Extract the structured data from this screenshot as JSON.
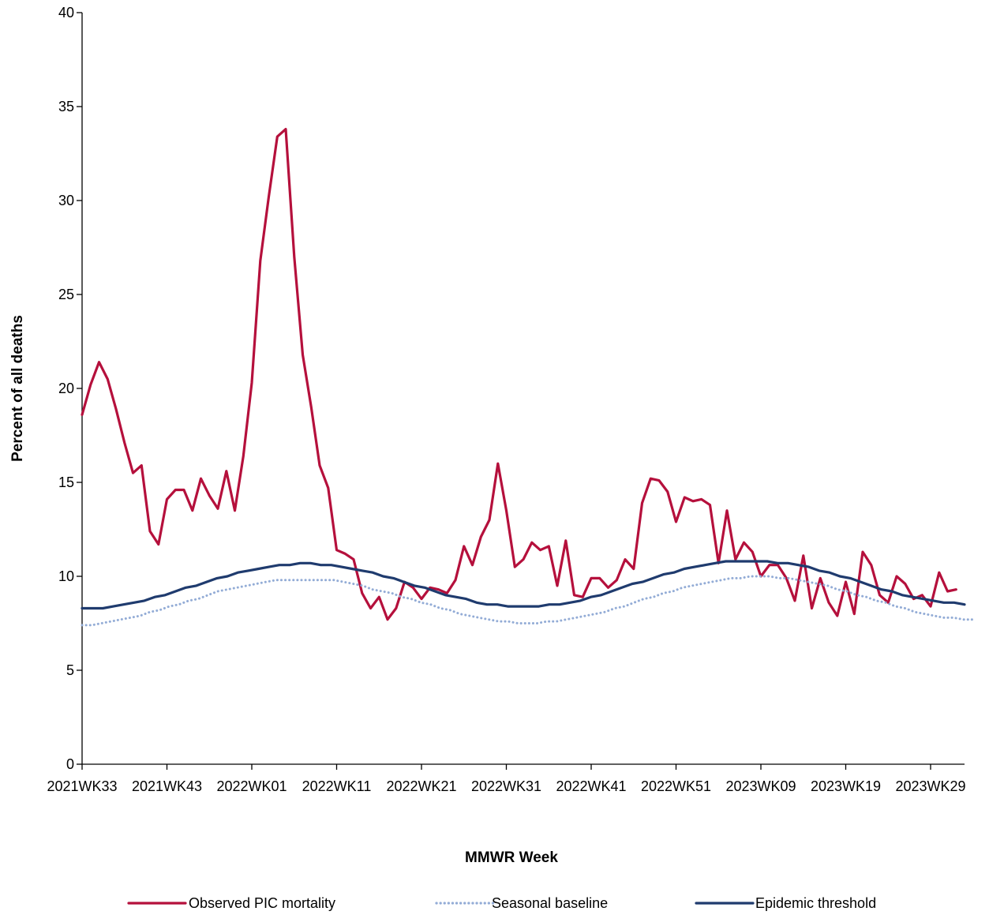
{
  "chart_data": {
    "type": "line",
    "title": "",
    "xlabel": "MMWR Week",
    "ylabel": "Percent of all deaths",
    "ylim": [
      0,
      40
    ],
    "yticks": [
      0,
      5,
      10,
      15,
      20,
      25,
      30,
      35,
      40
    ],
    "grid": false,
    "legend_position": "bottom",
    "x_tick_labels": [
      "2021WK33",
      "2021WK43",
      "2022WK01",
      "2022WK11",
      "2022WK21",
      "2022WK31",
      "2022WK41",
      "2022WK51",
      "2023WK09",
      "2023WK19",
      "2023WK29"
    ],
    "x_tick_positions": [
      0,
      10,
      20,
      30,
      40,
      50,
      60,
      70,
      80,
      90,
      100
    ],
    "x_range": [
      0,
      104
    ],
    "series": [
      {
        "name": "Observed PIC mortality",
        "color": "#b5103c",
        "style": "solid",
        "values": [
          18.6,
          20.2,
          21.4,
          20.5,
          18.9,
          17.1,
          15.5,
          15.9,
          12.4,
          11.7,
          14.1,
          14.6,
          14.6,
          13.5,
          15.2,
          14.3,
          13.6,
          15.6,
          13.5,
          16.4,
          20.3,
          26.8,
          30.2,
          33.4,
          33.8,
          27.0,
          21.8,
          19.0,
          15.9,
          14.7,
          11.4,
          11.2,
          10.9,
          9.1,
          8.3,
          8.9,
          7.7,
          8.3,
          9.7,
          9.4,
          8.8,
          9.4,
          9.3,
          9.1,
          9.8,
          11.6,
          10.6,
          12.1,
          13.0,
          16.0,
          13.5,
          10.5,
          10.9,
          11.8,
          11.4,
          11.6,
          9.5,
          11.9,
          9.0,
          8.9,
          9.9,
          9.9,
          9.4,
          9.8,
          10.9,
          10.4,
          13.9,
          15.2,
          15.1,
          14.5,
          12.9,
          14.2,
          14.0,
          14.1,
          13.8,
          10.7,
          13.5,
          10.9,
          11.8,
          11.3,
          10.0,
          10.6,
          10.6,
          9.9,
          8.7,
          11.1,
          8.3,
          9.9,
          8.6,
          7.9,
          9.7,
          8.0,
          11.3,
          10.6,
          9.0,
          8.6,
          10.0,
          9.6,
          8.8,
          9.0,
          8.4,
          10.2,
          9.2,
          9.3
        ],
        "x_start": 0
      },
      {
        "name": "Seasonal baseline",
        "color": "#93acd6",
        "style": "dotted",
        "values": [
          7.4,
          7.4,
          7.5,
          7.6,
          7.7,
          7.8,
          7.9,
          8.1,
          8.2,
          8.4,
          8.5,
          8.7,
          8.8,
          9.0,
          9.2,
          9.3,
          9.4,
          9.5,
          9.6,
          9.7,
          9.8,
          9.8,
          9.8,
          9.8,
          9.8,
          9.8,
          9.8,
          9.7,
          9.6,
          9.5,
          9.3,
          9.2,
          9.1,
          8.9,
          8.8,
          8.6,
          8.5,
          8.3,
          8.2,
          8.0,
          7.9,
          7.8,
          7.7,
          7.6,
          7.6,
          7.5,
          7.5,
          7.5,
          7.6,
          7.6,
          7.7,
          7.8,
          7.9,
          8.0,
          8.1,
          8.3,
          8.4,
          8.6,
          8.8,
          8.9,
          9.1,
          9.2,
          9.4,
          9.5,
          9.6,
          9.7,
          9.8,
          9.9,
          9.9,
          10.0,
          10.0,
          10.0,
          9.9,
          9.9,
          9.8,
          9.7,
          9.6,
          9.5,
          9.3,
          9.2,
          9.0,
          8.9,
          8.7,
          8.6,
          8.4,
          8.3,
          8.1,
          8.0,
          7.9,
          7.8,
          7.8,
          7.7,
          7.7
        ],
        "x_start": 0,
        "x_step": 1.1413
      },
      {
        "name": "Epidemic threshold",
        "color": "#1f3b6e",
        "style": "solid",
        "values": [
          8.3,
          8.3,
          8.3,
          8.4,
          8.5,
          8.6,
          8.7,
          8.9,
          9.0,
          9.2,
          9.4,
          9.5,
          9.7,
          9.9,
          10.0,
          10.2,
          10.3,
          10.4,
          10.5,
          10.6,
          10.6,
          10.7,
          10.7,
          10.6,
          10.6,
          10.5,
          10.4,
          10.3,
          10.2,
          10.0,
          9.9,
          9.7,
          9.5,
          9.4,
          9.2,
          9.0,
          8.9,
          8.8,
          8.6,
          8.5,
          8.5,
          8.4,
          8.4,
          8.4,
          8.4,
          8.5,
          8.5,
          8.6,
          8.7,
          8.9,
          9.0,
          9.2,
          9.4,
          9.6,
          9.7,
          9.9,
          10.1,
          10.2,
          10.4,
          10.5,
          10.6,
          10.7,
          10.8,
          10.8,
          10.8,
          10.8,
          10.8,
          10.7,
          10.7,
          10.6,
          10.5,
          10.3,
          10.2,
          10.0,
          9.9,
          9.7,
          9.5,
          9.3,
          9.2,
          9.0,
          8.9,
          8.8,
          8.7,
          8.6,
          8.6,
          8.5
        ],
        "x_start": 0,
        "x_step": 1.2235
      }
    ]
  }
}
